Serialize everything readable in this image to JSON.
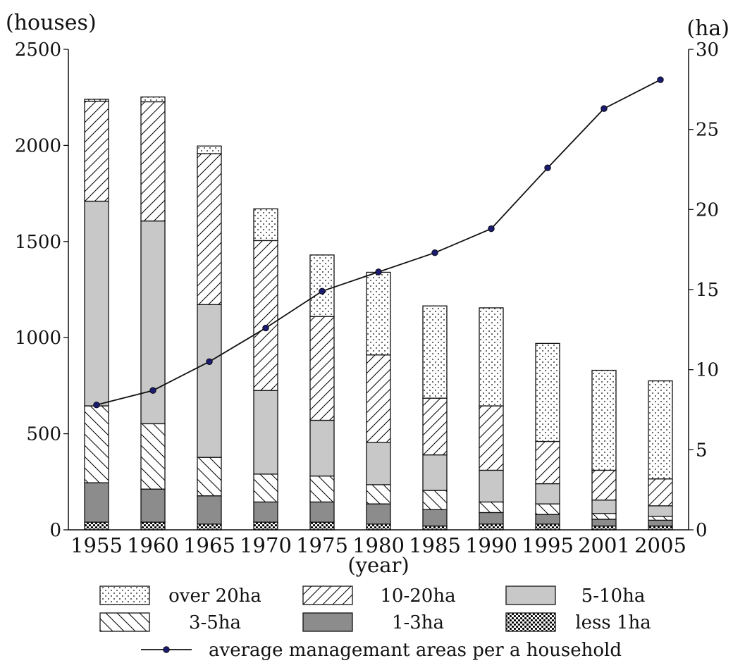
{
  "chart_data": {
    "type": "bar",
    "stacked": true,
    "categories": [
      "1955",
      "1960",
      "1965",
      "1970",
      "1975",
      "1980",
      "1985",
      "1990",
      "1995",
      "2001",
      "2005"
    ],
    "left_axis": {
      "unit": "(houses)",
      "ylim": [
        0,
        2500
      ],
      "ticks": [
        "0",
        "500",
        "1000",
        "1500",
        "2000",
        "2500"
      ]
    },
    "right_axis": {
      "unit": "(ha)",
      "ylim": [
        0,
        30
      ],
      "ticks": [
        "0",
        "5",
        "10",
        "15",
        "20",
        "25",
        "30"
      ]
    },
    "xlabel": "(year)",
    "series": [
      {
        "name": "less 1ha",
        "pattern": "checker",
        "values": [
          40,
          40,
          30,
          40,
          40,
          30,
          20,
          30,
          30,
          20,
          20
        ]
      },
      {
        "name": "1-3ha",
        "pattern": "dark",
        "values": [
          205,
          172,
          147,
          105,
          105,
          105,
          85,
          60,
          50,
          35,
          30
        ]
      },
      {
        "name": "3-5ha",
        "pattern": "backslash",
        "values": [
          400,
          340,
          200,
          145,
          135,
          100,
          100,
          55,
          55,
          30,
          20
        ]
      },
      {
        "name": "5-10ha",
        "pattern": "gray",
        "values": [
          1065,
          1055,
          795,
          435,
          290,
          220,
          185,
          165,
          105,
          70,
          55
        ]
      },
      {
        "name": "10-20ha",
        "pattern": "slash",
        "values": [
          520,
          620,
          785,
          780,
          540,
          455,
          295,
          335,
          220,
          155,
          140
        ]
      },
      {
        "name": "over 20ha",
        "pattern": "dots",
        "values": [
          10,
          25,
          40,
          165,
          320,
          430,
          480,
          510,
          510,
          520,
          510
        ]
      }
    ],
    "line": {
      "name": "average managemant areas per a household",
      "axis": "right",
      "values": [
        7.8,
        8.7,
        10.5,
        12.6,
        14.9,
        16.1,
        17.3,
        18.8,
        22.6,
        26.3,
        28.1
      ]
    },
    "legend": {
      "placement": "bottom"
    }
  }
}
